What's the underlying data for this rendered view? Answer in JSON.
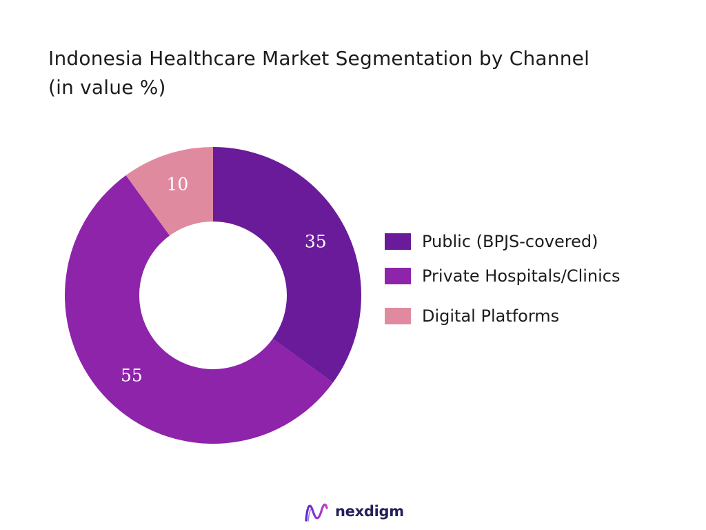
{
  "chart_data": {
    "type": "pie",
    "title": "Indonesia Healthcare Market Segmentation by Channel (in value %)",
    "style": "donut",
    "legend_position": "right",
    "categories": [
      "Public (BPJS-covered)",
      "Private Hospitals/Clinics",
      "Digital Platforms"
    ],
    "values": [
      35,
      55,
      10
    ],
    "data_labels": [
      "35",
      "55",
      "10"
    ],
    "colors": [
      "#6a1b9a",
      "#8e24aa",
      "#e08aa0"
    ]
  },
  "brand": {
    "name": "nexdigm"
  }
}
